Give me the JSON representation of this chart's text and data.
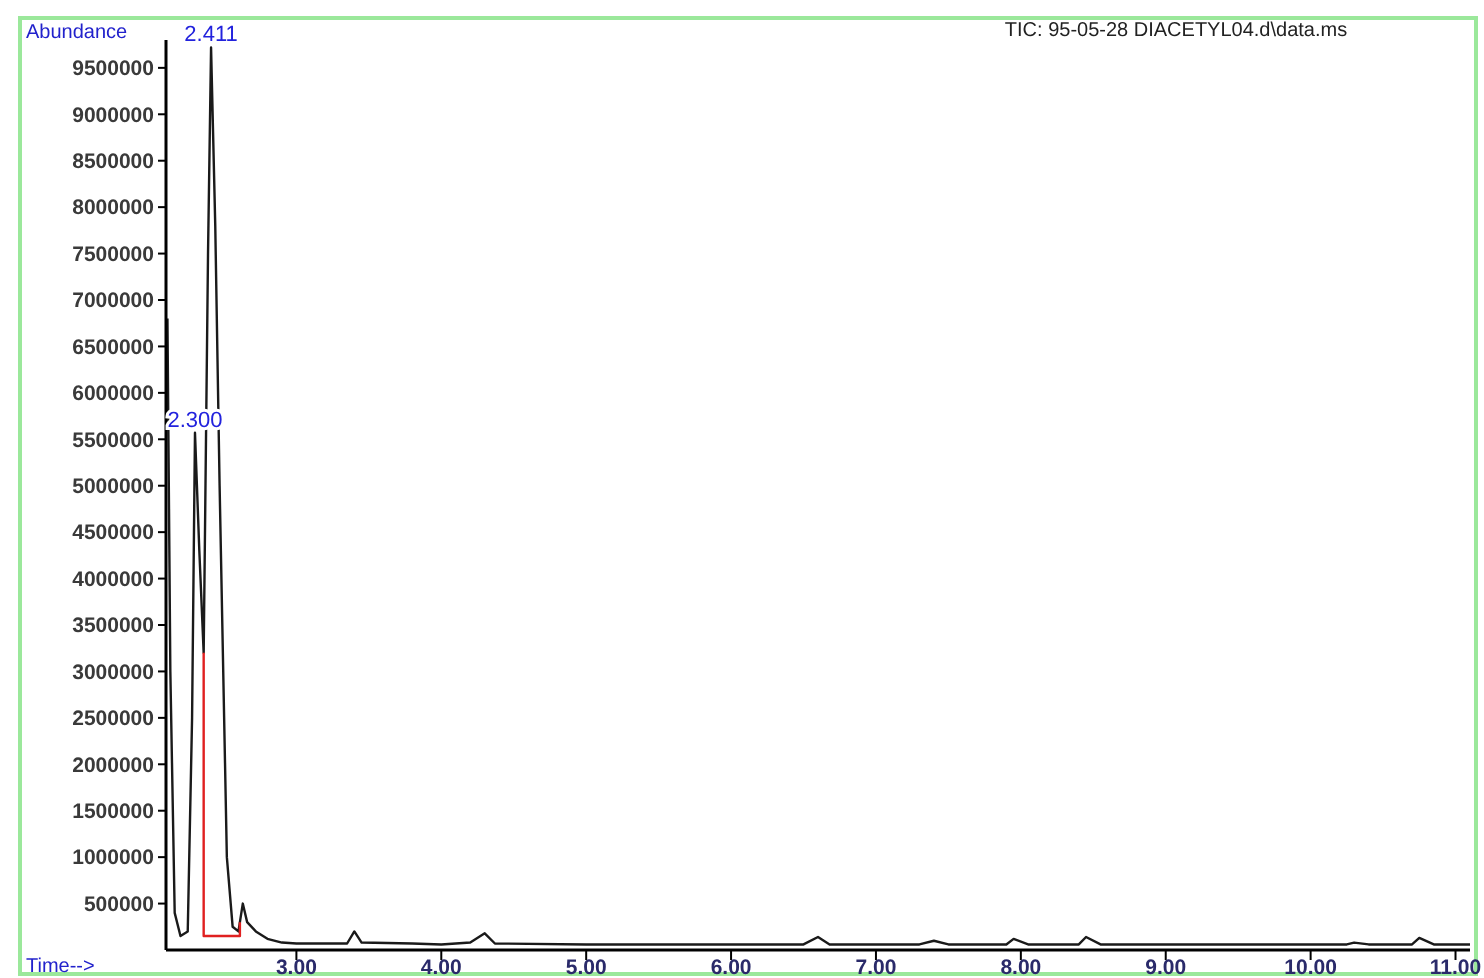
{
  "chart_data": {
    "type": "line",
    "title": "TIC: 95-05-28 DIACETYL04.d\\data.ms",
    "xlabel": "Time-->",
    "ylabel": "Abundance",
    "xlim": [
      2.1,
      11.1
    ],
    "ylim": [
      0,
      9800000
    ],
    "xticks": [
      {
        "value": 3,
        "label": "3.00"
      },
      {
        "value": 4,
        "label": "4.00"
      },
      {
        "value": 5,
        "label": "5.00"
      },
      {
        "value": 6,
        "label": "6.00"
      },
      {
        "value": 7,
        "label": "7.00"
      },
      {
        "value": 8,
        "label": "8.00"
      },
      {
        "value": 9,
        "label": "9.00"
      },
      {
        "value": 10,
        "label": "10.00"
      },
      {
        "value": 11,
        "label": "11.00"
      }
    ],
    "yticks": [
      500000,
      1000000,
      1500000,
      2000000,
      2500000,
      3000000,
      3500000,
      4000000,
      4500000,
      5000000,
      5500000,
      6000000,
      6500000,
      7000000,
      7500000,
      8000000,
      8500000,
      9000000,
      9500000
    ],
    "grid": false,
    "marker": "none",
    "line_style": "solid",
    "annotations": [
      {
        "text": "2.411",
        "x": 2.411,
        "y": 9720000
      },
      {
        "text": "2.300",
        "x": 2.3,
        "y": 5570000
      }
    ],
    "series": [
      {
        "color": "#1a1a1a",
        "x": [
          2.11,
          2.13,
          2.16,
          2.2,
          2.25,
          2.28,
          2.3,
          2.33,
          2.36,
          2.39,
          2.411,
          2.44,
          2.47,
          2.52,
          2.56,
          2.6,
          2.63,
          2.66,
          2.72,
          2.8,
          2.9,
          3.0,
          3.35,
          3.4,
          3.45,
          3.8,
          4.0,
          4.2,
          4.3,
          4.37,
          5.0,
          6.5,
          6.6,
          6.68,
          7.3,
          7.4,
          7.5,
          7.9,
          7.95,
          8.05,
          8.4,
          8.45,
          8.55,
          10.25,
          10.3,
          10.4,
          10.7,
          10.75,
          10.85,
          11.1
        ],
        "values": [
          6800000,
          3000000,
          400000,
          150000,
          200000,
          2500000,
          5570000,
          4300000,
          3200000,
          7500000,
          9720000,
          7800000,
          5000000,
          1000000,
          250000,
          200000,
          500000,
          300000,
          200000,
          120000,
          80000,
          70000,
          70000,
          200000,
          80000,
          70000,
          60000,
          80000,
          180000,
          70000,
          60000,
          60000,
          140000,
          60000,
          60000,
          100000,
          60000,
          60000,
          120000,
          60000,
          60000,
          140000,
          60000,
          60000,
          80000,
          60000,
          60000,
          130000,
          60000,
          60000
        ]
      },
      {
        "color": "#e02020",
        "x": [
          2.36,
          2.36,
          2.61,
          2.61
        ],
        "values": [
          3200000,
          150000,
          150000,
          300000
        ]
      }
    ]
  }
}
